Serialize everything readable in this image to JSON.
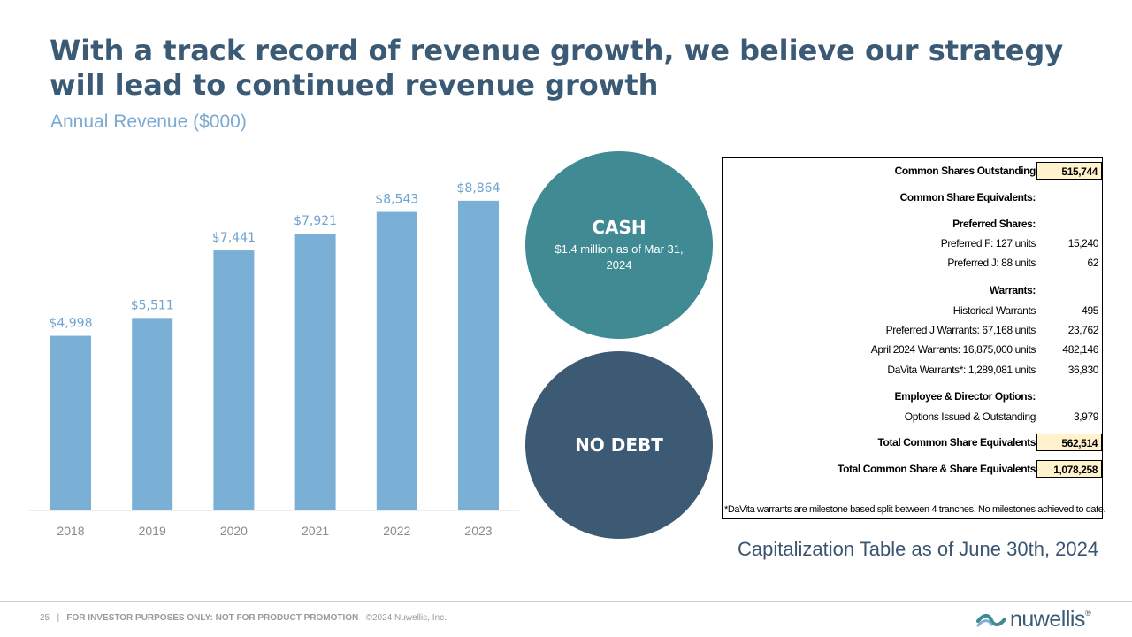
{
  "slide": {
    "title": "With a track record of revenue growth, we believe our strategy will lead to continued revenue growth",
    "subtitle": "Annual Revenue ($000)"
  },
  "chart_data": {
    "type": "bar",
    "title": "Annual Revenue ($000)",
    "categories": [
      "2018",
      "2019",
      "2020",
      "2021",
      "2022",
      "2023"
    ],
    "values": [
      4998,
      5511,
      7441,
      7921,
      8543,
      8864
    ],
    "labels": [
      "$4,998",
      "$5,511",
      "$7,441",
      "$7,921",
      "$8,543",
      "$8,864"
    ],
    "ylim": [
      0,
      10000
    ],
    "grid": false,
    "colors": {
      "bar": "#7aafd6",
      "label": "#6fa3cf"
    }
  },
  "circles": {
    "cash": {
      "title": "CASH",
      "subtitle": "$1.4 million as of Mar 31, 2024",
      "color": "#3f8a93"
    },
    "debt": {
      "title": "NO DEBT",
      "color": "#3c5a73"
    }
  },
  "cap_table": {
    "rows": [
      {
        "label": "Common Shares Outstanding",
        "value": "515,744",
        "bold": true,
        "highlight": true
      },
      {
        "label": "Common Share Equivalents:",
        "value": "",
        "bold": true
      },
      {
        "label": "Preferred Shares:",
        "value": "",
        "bold": true
      },
      {
        "label": "Preferred F: 127 units",
        "value": "15,240"
      },
      {
        "label": "Preferred J: 88 units",
        "value": "62"
      },
      {
        "label": "Warrants:",
        "value": "",
        "bold": true
      },
      {
        "label": "Historical Warrants",
        "value": "495"
      },
      {
        "label": "Preferred J Warrants: 67,168 units",
        "value": "23,762"
      },
      {
        "label": "April 2024 Warrants: 16,875,000 units",
        "value": "482,146"
      },
      {
        "label": "DaVita Warrants*: 1,289,081 units",
        "value": "36,830"
      },
      {
        "label": "Employee & Director Options:",
        "value": "",
        "bold": true
      },
      {
        "label": "Options Issued & Outstanding",
        "value": "3,979"
      },
      {
        "label": "Total Common Share Equivalents",
        "value": "562,514",
        "bold": true,
        "highlight": true
      },
      {
        "label": "Total Common Share & Share Equivalents",
        "value": "1,078,258",
        "bold": true,
        "highlight": true
      }
    ],
    "footnote": "*DaVita warrants are milestone based split between 4 tranches. No milestones achieved to date.",
    "caption": "Capitalization Table as of June 30th, 2024"
  },
  "footer": {
    "page_number": "25",
    "separator": "|",
    "disclaimer": "FOR INVESTOR PURPOSES ONLY: NOT FOR PRODUCT PROMOTION",
    "copyright": "©2024 Nuwellis, Inc.",
    "logo_text": "nuwellis",
    "logo_mark": "®"
  }
}
